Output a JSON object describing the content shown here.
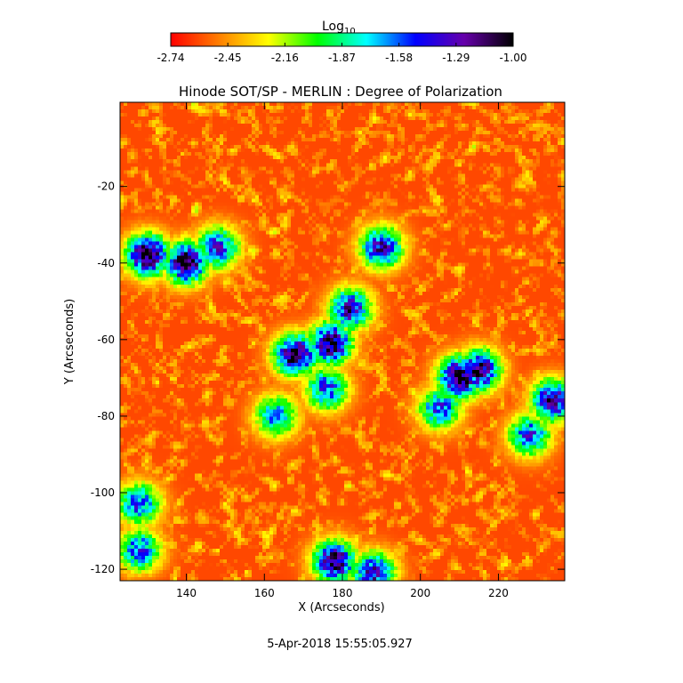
{
  "colorbar": {
    "label_main": "Log",
    "label_sub": "10",
    "ticks": [
      "-2.74",
      "-2.45",
      "-2.16",
      "-1.87",
      "-1.58",
      "-1.29",
      "-1.00"
    ],
    "range": [
      -2.74,
      -1.0
    ],
    "colormap": [
      "#ff0000",
      "#ff8000",
      "#ffff00",
      "#00ff00",
      "#00ffff",
      "#0000ff",
      "#6600aa",
      "#000000"
    ]
  },
  "footer": {
    "timestamp": "5-Apr-2018 15:55:05.927"
  },
  "chart_data": {
    "type": "heatmap",
    "title": "Hinode SOT/SP - MERLIN : Degree of Polarization",
    "xlabel": "X (Arcseconds)",
    "ylabel": "Y (Arcseconds)",
    "xlim": [
      123,
      237
    ],
    "ylim": [
      -123,
      2
    ],
    "x_ticks": [
      "140",
      "160",
      "180",
      "200",
      "220"
    ],
    "x_tick_values": [
      140,
      160,
      180,
      200,
      220
    ],
    "y_ticks": [
      "-20",
      "-40",
      "-60",
      "-80",
      "-100",
      "-120"
    ],
    "y_tick_values": [
      -20,
      -40,
      -60,
      -80,
      -100,
      -120
    ],
    "value_unit": "Log10 degree of polarization",
    "background_level": -2.6,
    "features": [
      {
        "x": 130,
        "y": -38,
        "level": -1.0
      },
      {
        "x": 140,
        "y": -40,
        "level": -1.05
      },
      {
        "x": 148,
        "y": -36,
        "level": -1.4
      },
      {
        "x": 168,
        "y": -64,
        "level": -1.05
      },
      {
        "x": 177,
        "y": -61,
        "level": -1.1
      },
      {
        "x": 182,
        "y": -52,
        "level": -1.3
      },
      {
        "x": 190,
        "y": -36,
        "level": -1.3
      },
      {
        "x": 176,
        "y": -73,
        "level": -1.5
      },
      {
        "x": 210,
        "y": -70,
        "level": -1.0
      },
      {
        "x": 215,
        "y": -68,
        "level": -1.15
      },
      {
        "x": 205,
        "y": -78,
        "level": -1.5
      },
      {
        "x": 234,
        "y": -76,
        "level": -1.2
      },
      {
        "x": 228,
        "y": -85,
        "level": -1.5
      },
      {
        "x": 178,
        "y": -118,
        "level": -1.1
      },
      {
        "x": 188,
        "y": -121,
        "level": -1.3
      },
      {
        "x": 128,
        "y": -103,
        "level": -1.5
      },
      {
        "x": 128,
        "y": -115,
        "level": -1.5
      },
      {
        "x": 163,
        "y": -80,
        "level": -1.6
      }
    ]
  }
}
